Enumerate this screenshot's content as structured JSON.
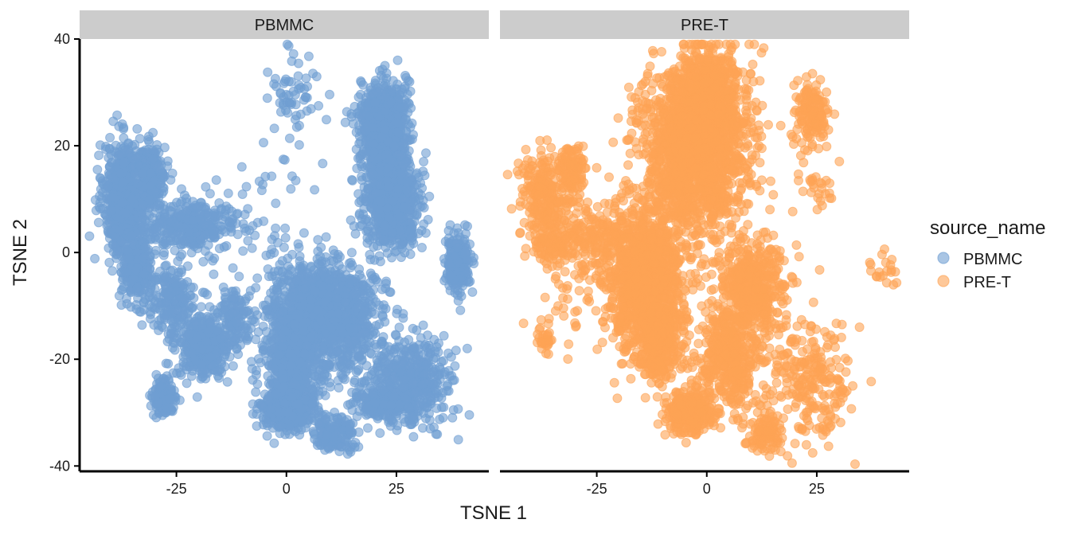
{
  "chart_data": {
    "type": "scatter",
    "facet_variable": "source_name",
    "panels": [
      {
        "name": "PBMMC",
        "color": "#6f9fd2",
        "clusters": [
          {
            "label": "left-group",
            "center": [
              -37,
              10
            ],
            "sd": [
              2.2,
              5.2
            ],
            "n": 700
          },
          {
            "label": "left-group-arm",
            "center": [
              -31,
              14
            ],
            "sd": [
              1.8,
              3.0
            ],
            "n": 250
          },
          {
            "label": "left-lower-stem",
            "center": [
              -34,
              -3
            ],
            "sd": [
              1.6,
              3.0
            ],
            "n": 250
          },
          {
            "label": "left-band",
            "center": [
              -22,
              5
            ],
            "sd": [
              5.5,
              2.2
            ],
            "n": 350
          },
          {
            "label": "left-mid-scatter",
            "center": [
              -26,
              -9
            ],
            "sd": [
              3.0,
              3.5
            ],
            "n": 200
          },
          {
            "label": "left-low-blob",
            "center": [
              -19,
              -18
            ],
            "sd": [
              2.6,
              2.8
            ],
            "n": 400
          },
          {
            "label": "left-low-arm",
            "center": [
              -12,
              -13
            ],
            "sd": [
              2.4,
              3.0
            ],
            "n": 150
          },
          {
            "label": "bottom-left-blob",
            "center": [
              -28,
              -27
            ],
            "sd": [
              1.2,
              1.6
            ],
            "n": 150
          },
          {
            "label": "top-upper-sparse",
            "center": [
              2,
              31
            ],
            "sd": [
              3.0,
              4.0
            ],
            "n": 60
          },
          {
            "label": "top-right-blob",
            "center": [
              22,
              24
            ],
            "sd": [
              2.6,
              4.0
            ],
            "n": 700
          },
          {
            "label": "right-mid-blob",
            "center": [
              24,
              10
            ],
            "sd": [
              3.2,
              4.2
            ],
            "n": 750
          },
          {
            "label": "far-right-blob",
            "center": [
              39,
              -2
            ],
            "sd": [
              1.4,
              2.6
            ],
            "n": 250
          },
          {
            "label": "central-mass",
            "center": [
              8,
              -12
            ],
            "sd": [
              6.0,
              5.0
            ],
            "n": 1400
          },
          {
            "label": "central-lower-mass",
            "center": [
              1,
              -23
            ],
            "sd": [
              3.0,
              4.0
            ],
            "n": 500
          },
          {
            "label": "central-bottom-mass",
            "center": [
              0,
              -30
            ],
            "sd": [
              3.0,
              1.6
            ],
            "n": 350
          },
          {
            "label": "right-diagonal-band",
            "center": [
              28,
              -24
            ],
            "sd": [
              5.0,
              4.0
            ],
            "n": 450
          },
          {
            "label": "bottom-center-tail",
            "center": [
              11,
              -34
            ],
            "sd": [
              2.4,
              1.6
            ],
            "n": 150
          },
          {
            "label": "right-low-strip",
            "center": [
              22,
              -28
            ],
            "sd": [
              3.0,
              1.2
            ],
            "n": 200
          },
          {
            "label": "sparse-middle",
            "center": [
              -5,
              5
            ],
            "sd": [
              8.0,
              8.0
            ],
            "n": 50
          }
        ]
      },
      {
        "name": "PRE-T",
        "color": "#fea455",
        "clusters": [
          {
            "label": "left-upper-band",
            "center": [
              -37,
              11
            ],
            "sd": [
              3.0,
              4.0
            ],
            "n": 220
          },
          {
            "label": "left-upper-arm",
            "center": [
              -31,
              15
            ],
            "sd": [
              2.0,
              2.5
            ],
            "n": 120
          },
          {
            "label": "left-lower-stem",
            "center": [
              -35,
              1
            ],
            "sd": [
              2.5,
              3.0
            ],
            "n": 120
          },
          {
            "label": "left-mid-band",
            "center": [
              -26,
              2
            ],
            "sd": [
              3.5,
              3.0
            ],
            "n": 150
          },
          {
            "label": "left-sparse",
            "center": [
              -31,
              -10
            ],
            "sd": [
              4.0,
              5.0
            ],
            "n": 30
          },
          {
            "label": "left-low-blob",
            "center": [
              -37,
              -16
            ],
            "sd": [
              1.0,
              1.2
            ],
            "n": 30
          },
          {
            "label": "main-upper-column",
            "center": [
              -3,
              20
            ],
            "sd": [
              6.0,
              8.0
            ],
            "n": 1800
          },
          {
            "label": "main-top-spike",
            "center": [
              1,
              30
            ],
            "sd": [
              3.0,
              4.0
            ],
            "n": 400
          },
          {
            "label": "main-lower-column",
            "center": [
              -14,
              -5
            ],
            "sd": [
              4.5,
              7.0
            ],
            "n": 1200
          },
          {
            "label": "main-bottom-tail",
            "center": [
              -11,
              -17
            ],
            "sd": [
              2.5,
              3.5
            ],
            "n": 300
          },
          {
            "label": "right-upper-blob",
            "center": [
              24,
              26
            ],
            "sd": [
              2.0,
              3.0
            ],
            "n": 150
          },
          {
            "label": "right-upper-sparse",
            "center": [
              25,
              12
            ],
            "sd": [
              2.0,
              2.5
            ],
            "n": 25
          },
          {
            "label": "center-low-blob",
            "center": [
              10,
              -6
            ],
            "sd": [
              3.5,
              4.0
            ],
            "n": 450
          },
          {
            "label": "center-diagonal",
            "center": [
              5,
              -20
            ],
            "sd": [
              3.5,
              5.0
            ],
            "n": 450
          },
          {
            "label": "center-bottom-blob",
            "center": [
              -4,
              -30
            ],
            "sd": [
              2.5,
              1.8
            ],
            "n": 350
          },
          {
            "label": "right-diagonal-band",
            "center": [
              23,
              -24
            ],
            "sd": [
              5.0,
              5.5
            ],
            "n": 250
          },
          {
            "label": "right-bottom-tail",
            "center": [
              13,
              -34
            ],
            "sd": [
              2.0,
              2.0
            ],
            "n": 100
          },
          {
            "label": "far-right-sparse",
            "center": [
              40,
              -3
            ],
            "sd": [
              2.0,
              2.0
            ],
            "n": 20
          },
          {
            "label": "sparse-middle",
            "center": [
              0,
              0
            ],
            "sd": [
              12.0,
              10.0
            ],
            "n": 60
          }
        ]
      }
    ],
    "xlabel": "TSNE 1",
    "ylabel": "TSNE 2",
    "xlim": [
      -47,
      46
    ],
    "ylim": [
      -41,
      40
    ],
    "xticks": [
      -25,
      0,
      25
    ],
    "yticks": [
      40,
      20,
      0,
      -20,
      -40
    ],
    "grid": false,
    "legend": {
      "title": "source_name",
      "placement": "right",
      "entries": [
        {
          "label": "PBMMC",
          "color": "#6f9fd2"
        },
        {
          "label": "PRE-T",
          "color": "#fea455"
        }
      ]
    },
    "strip_color": "#cccccc",
    "point_alpha": 0.6
  }
}
